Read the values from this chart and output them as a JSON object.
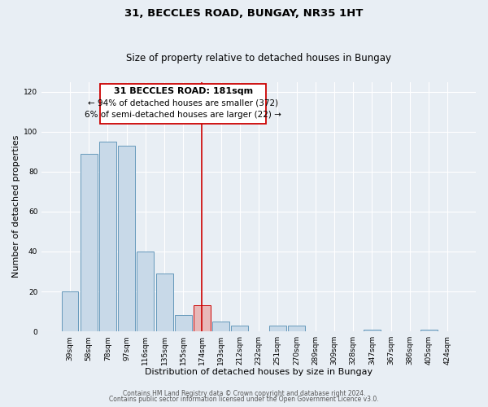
{
  "title": "31, BECCLES ROAD, BUNGAY, NR35 1HT",
  "subtitle": "Size of property relative to detached houses in Bungay",
  "xlabel": "Distribution of detached houses by size in Bungay",
  "ylabel": "Number of detached properties",
  "categories": [
    "39sqm",
    "58sqm",
    "78sqm",
    "97sqm",
    "116sqm",
    "135sqm",
    "155sqm",
    "174sqm",
    "193sqm",
    "212sqm",
    "232sqm",
    "251sqm",
    "270sqm",
    "289sqm",
    "309sqm",
    "328sqm",
    "347sqm",
    "367sqm",
    "386sqm",
    "405sqm",
    "424sqm"
  ],
  "values": [
    20,
    89,
    95,
    93,
    40,
    29,
    8,
    13,
    5,
    3,
    0,
    3,
    3,
    0,
    0,
    0,
    1,
    0,
    0,
    1,
    0
  ],
  "bar_color": "#c8d9e8",
  "bar_edge_color": "#6699bb",
  "highlight_bar_index": 7,
  "highlight_bar_color": "#e8b8b8",
  "highlight_bar_edge_color": "#cc0000",
  "vline_x": 7,
  "vline_color": "#cc0000",
  "ylim": [
    0,
    125
  ],
  "yticks": [
    0,
    20,
    40,
    60,
    80,
    100,
    120
  ],
  "annotation_title": "31 BECCLES ROAD: 181sqm",
  "annotation_line1": "← 94% of detached houses are smaller (372)",
  "annotation_line2": "6% of semi-detached houses are larger (22) →",
  "annotation_box_color": "#ffffff",
  "annotation_box_edge_color": "#cc0000",
  "footer_line1": "Contains HM Land Registry data © Crown copyright and database right 2024.",
  "footer_line2": "Contains public sector information licensed under the Open Government Licence v3.0.",
  "background_color": "#e8eef4",
  "grid_color": "#ffffff",
  "title_fontsize": 9.5,
  "subtitle_fontsize": 8.5,
  "xlabel_fontsize": 8,
  "ylabel_fontsize": 8,
  "tick_fontsize": 6.5,
  "annotation_title_fontsize": 8,
  "annotation_text_fontsize": 7.5,
  "footer_fontsize": 5.5
}
